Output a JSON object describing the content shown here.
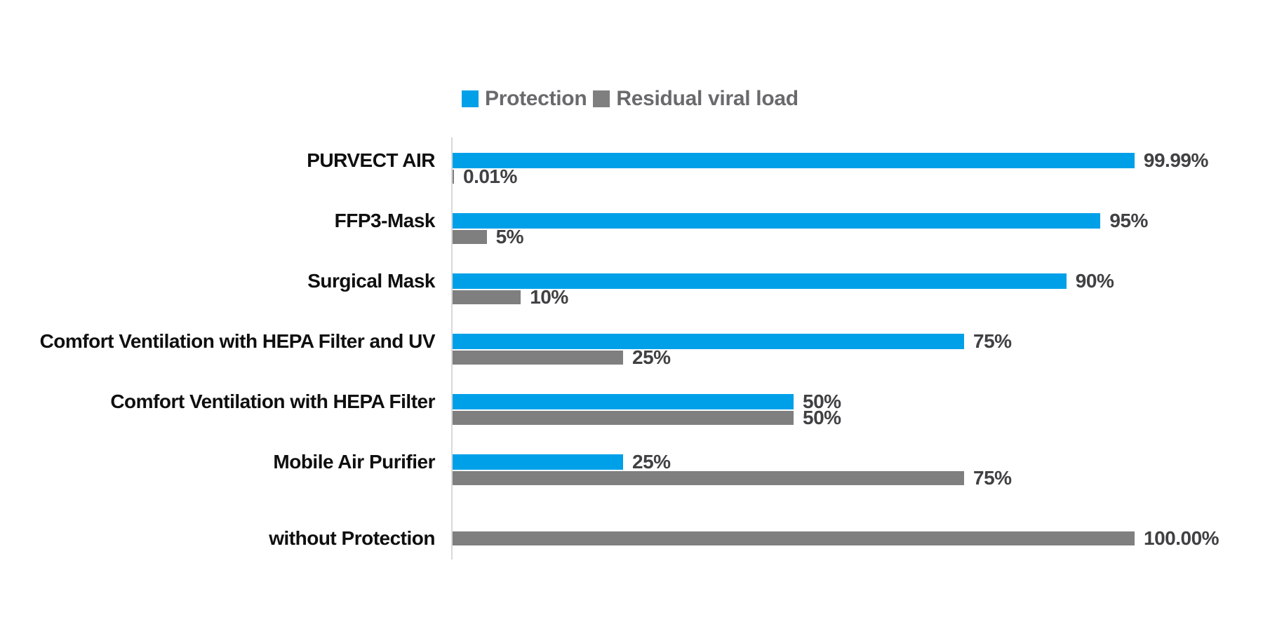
{
  "chart_data": {
    "type": "bar",
    "orientation": "horizontal",
    "title": "",
    "xlabel": "",
    "ylabel": "",
    "xlim": [
      0,
      100
    ],
    "grid": false,
    "legend_position": "top",
    "value_labels": true,
    "categories": [
      "PURVECT AIR",
      "FFP3-Mask",
      "Surgical Mask",
      "Comfort Ventilation with HEPA Filter and UV",
      "Comfort Ventilation with HEPA Filter",
      "Mobile Air Purifier",
      "without Protection"
    ],
    "series": [
      {
        "name": "Protection",
        "color": "#00A0E9",
        "values": [
          99.99,
          95,
          90,
          75,
          50,
          25,
          null
        ],
        "labels": [
          "99.99%",
          "95%",
          "90%",
          "75%",
          "50%",
          "25%",
          null
        ]
      },
      {
        "name": "Residual viral load",
        "color": "#7F7F7F",
        "values": [
          0.01,
          5,
          10,
          25,
          50,
          75,
          100
        ],
        "labels": [
          "0.01%",
          "5%",
          "10%",
          "25%",
          "50%",
          "75%",
          "100.00%"
        ]
      }
    ],
    "colors": {
      "category_label": "#0f0f0f",
      "value_label": "#414042",
      "legend_text": "#696a6c",
      "axis_line": "#d8d8d8",
      "background": "#ffffff"
    }
  }
}
